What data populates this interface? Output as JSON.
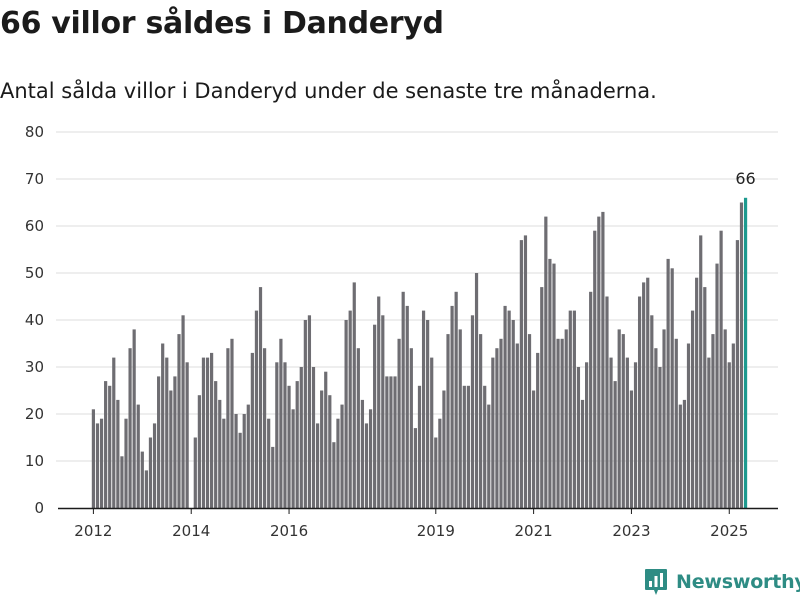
{
  "title": "66 villor såldes i Danderyd",
  "subtitle": "Antal sålda villor i Danderyd under de senaste tre månaderna.",
  "brand": {
    "name": "Newsworthy",
    "icon": "newsworthy-logo-icon"
  },
  "colors": {
    "bar": "#6e6d72",
    "highlight": "#1d9a8f",
    "grid": "#dcdcdc",
    "axis": "#1b1b1b",
    "brand": "#2e8c84"
  },
  "chart_data": {
    "type": "bar",
    "title": "66 villor såldes i Danderyd",
    "subtitle": "Antal sålda villor i Danderyd under de senaste tre månaderna.",
    "xlabel": "",
    "ylabel": "",
    "ylim": [
      0,
      80
    ],
    "y_ticks": [
      0,
      10,
      20,
      30,
      40,
      50,
      60,
      70,
      80
    ],
    "x_tick_labels": [
      "2012",
      "2014",
      "2016",
      "2019",
      "2021",
      "2023",
      "2025"
    ],
    "grid": "horizontal",
    "legend": "none",
    "annotation": "66",
    "categories": [
      "2012-01",
      "2012-02",
      "2012-03",
      "2012-04",
      "2012-05",
      "2012-06",
      "2012-07",
      "2012-08",
      "2012-09",
      "2012-10",
      "2012-11",
      "2012-12",
      "2013-01",
      "2013-02",
      "2013-03",
      "2013-04",
      "2013-05",
      "2013-06",
      "2013-07",
      "2013-08",
      "2013-09",
      "2013-10",
      "2013-11",
      "2013-12",
      "2014-01",
      "2014-02",
      "2014-03",
      "2014-04",
      "2014-05",
      "2014-06",
      "2014-07",
      "2014-08",
      "2014-09",
      "2014-10",
      "2014-11",
      "2014-12",
      "2015-01",
      "2015-02",
      "2015-03",
      "2015-04",
      "2015-05",
      "2015-06",
      "2015-07",
      "2015-08",
      "2015-09",
      "2015-10",
      "2015-11",
      "2015-12",
      "2016-01",
      "2016-02",
      "2016-03",
      "2016-04",
      "2016-05",
      "2016-06",
      "2016-07",
      "2016-08",
      "2016-09",
      "2016-10",
      "2016-11",
      "2016-12",
      "2017-01",
      "2017-02",
      "2017-03",
      "2017-04",
      "2017-05",
      "2017-06",
      "2017-07",
      "2017-08",
      "2017-09",
      "2017-10",
      "2017-11",
      "2017-12",
      "2018-01",
      "2018-02",
      "2018-03",
      "2018-04",
      "2018-05",
      "2018-06",
      "2018-07",
      "2018-08",
      "2018-09",
      "2018-10",
      "2018-11",
      "2018-12",
      "2019-01",
      "2019-02",
      "2019-03",
      "2019-04",
      "2019-05",
      "2019-06",
      "2019-07",
      "2019-08",
      "2019-09",
      "2019-10",
      "2019-11",
      "2019-12",
      "2020-01",
      "2020-02",
      "2020-03",
      "2020-04",
      "2020-05",
      "2020-06",
      "2020-07",
      "2020-08",
      "2020-09",
      "2020-10",
      "2020-11",
      "2020-12",
      "2021-01",
      "2021-02",
      "2021-03",
      "2021-04",
      "2021-05",
      "2021-06",
      "2021-07",
      "2021-08",
      "2021-09",
      "2021-10",
      "2021-11",
      "2021-12",
      "2022-01",
      "2022-02",
      "2022-03",
      "2022-04",
      "2022-05",
      "2022-06",
      "2022-07",
      "2022-08",
      "2022-09",
      "2022-10",
      "2022-11",
      "2022-12",
      "2023-01",
      "2023-02",
      "2023-03",
      "2023-04",
      "2023-05",
      "2023-06",
      "2023-07",
      "2023-08",
      "2023-09",
      "2023-10",
      "2023-11",
      "2023-12",
      "2024-01",
      "2024-02",
      "2024-03",
      "2024-04",
      "2024-05",
      "2024-06",
      "2024-07",
      "2024-08",
      "2024-09",
      "2024-10",
      "2024-11",
      "2024-12",
      "2025-01",
      "2025-02",
      "2025-03",
      "2025-04",
      "2025-05"
    ],
    "values": [
      21,
      18,
      19,
      27,
      26,
      32,
      23,
      11,
      19,
      34,
      38,
      22,
      12,
      8,
      15,
      18,
      28,
      35,
      32,
      25,
      28,
      37,
      41,
      31,
      0,
      15,
      24,
      32,
      32,
      33,
      27,
      23,
      19,
      34,
      36,
      20,
      16,
      20,
      22,
      33,
      42,
      47,
      34,
      19,
      13,
      31,
      36,
      31,
      26,
      21,
      27,
      30,
      40,
      41,
      30,
      18,
      25,
      29,
      24,
      14,
      19,
      22,
      40,
      42,
      48,
      34,
      23,
      18,
      21,
      39,
      45,
      41,
      28,
      28,
      28,
      36,
      46,
      43,
      34,
      17,
      26,
      42,
      40,
      32,
      15,
      19,
      25,
      37,
      43,
      46,
      38,
      26,
      26,
      41,
      50,
      37,
      26,
      22,
      32,
      34,
      36,
      43,
      42,
      40,
      35,
      57,
      58,
      37,
      25,
      33,
      47,
      62,
      53,
      52,
      36,
      36,
      38,
      42,
      42,
      30,
      23,
      31,
      46,
      59,
      62,
      63,
      45,
      32,
      27,
      38,
      37,
      32,
      25,
      31,
      45,
      48,
      49,
      41,
      34,
      30,
      38,
      53,
      51,
      36,
      22,
      23,
      35,
      42,
      49,
      58,
      47,
      32,
      37,
      52,
      59,
      38,
      31,
      35,
      57,
      65,
      66
    ],
    "highlight_index": 160
  }
}
